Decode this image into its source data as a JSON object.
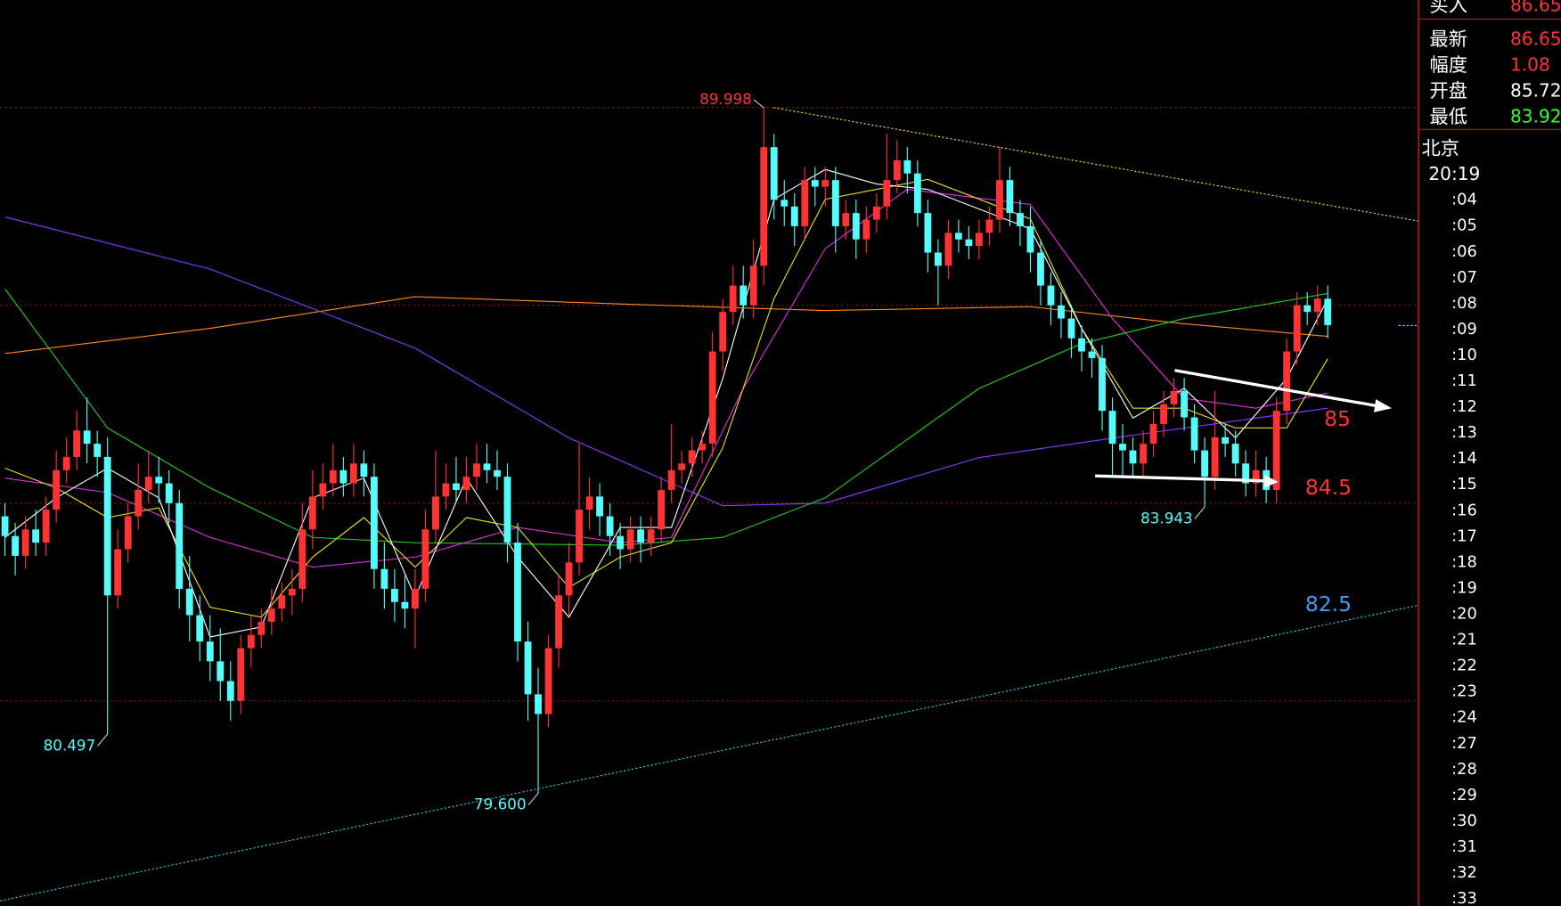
{
  "chart_data": {
    "type": "candlestick",
    "open": [
      83.8,
      83.5,
      83.2,
      83.6,
      83.4,
      83.9,
      84.5,
      84.7,
      85.1,
      84.9,
      84.7,
      82.6,
      83.3,
      83.8,
      84.2,
      84.4,
      84.3,
      84.0,
      82.7,
      82.3,
      81.9,
      81.6,
      81.3,
      81.0,
      81.8,
      82.0,
      82.2,
      82.4,
      82.6,
      82.7,
      83.6,
      84.1,
      84.3,
      84.5,
      84.3,
      84.6,
      84.4,
      83.0,
      82.7,
      82.5,
      82.4,
      82.7,
      83.6,
      84.1,
      84.3,
      84.2,
      84.4,
      84.6,
      84.5,
      84.4,
      83.4,
      81.9,
      81.1,
      80.8,
      81.8,
      82.6,
      83.1,
      83.9,
      84.1,
      83.8,
      83.5,
      83.3,
      83.6,
      83.4,
      83.6,
      84.2,
      84.5,
      84.6,
      84.8,
      84.9,
      86.3,
      86.9,
      87.3,
      87.0,
      87.6,
      89.4,
      88.6,
      88.5,
      88.2,
      88.9,
      88.8,
      88.9,
      88.2,
      88.4,
      88.0,
      88.3,
      88.5,
      88.9,
      89.2,
      89.0,
      88.4,
      87.8,
      87.6,
      88.1,
      88.0,
      87.9,
      88.1,
      88.3,
      88.9,
      88.4,
      88.2,
      87.8,
      87.3,
      87.0,
      86.8,
      86.5,
      86.3,
      86.2,
      85.4,
      84.9,
      84.8,
      84.6,
      84.9,
      85.2,
      85.5,
      85.7,
      85.3,
      84.8,
      84.4,
      85.0,
      84.9,
      84.6,
      84.3,
      84.5,
      84.2,
      85.4,
      86.3,
      87.0,
      86.9,
      87.1
    ],
    "high": [
      84.0,
      83.7,
      83.8,
      83.9,
      84.1,
      84.8,
      85.0,
      85.4,
      85.6,
      85.1,
      85.0,
      83.6,
      84.0,
      84.6,
      84.8,
      84.7,
      84.5,
      84.2,
      83.2,
      82.6,
      82.3,
      82.1,
      81.6,
      82.0,
      82.3,
      82.4,
      82.7,
      82.8,
      83.0,
      84.0,
      84.5,
      84.6,
      84.9,
      84.7,
      84.9,
      84.8,
      84.6,
      83.4,
      83.0,
      82.9,
      83.0,
      83.9,
      84.8,
      84.6,
      84.7,
      84.7,
      84.9,
      84.9,
      84.8,
      84.6,
      83.7,
      82.2,
      81.5,
      82.0,
      82.9,
      83.4,
      84.9,
      84.4,
      84.3,
      84.0,
      83.7,
      83.8,
      83.8,
      83.8,
      84.4,
      85.2,
      84.8,
      85.0,
      85.1,
      86.6,
      87.1,
      87.6,
      87.6,
      88.0,
      89.998,
      89.6,
      88.9,
      88.7,
      89.1,
      89.1,
      89.1,
      89.1,
      88.6,
      88.6,
      88.5,
      88.7,
      89.6,
      89.5,
      89.4,
      89.2,
      88.6,
      88.0,
      88.3,
      88.3,
      88.2,
      88.3,
      88.5,
      89.4,
      89.1,
      88.6,
      88.5,
      88.0,
      87.5,
      87.2,
      87.0,
      86.7,
      86.5,
      86.4,
      85.6,
      85.2,
      85.0,
      85.1,
      85.4,
      85.7,
      85.9,
      85.9,
      85.5,
      85.0,
      85.7,
      85.2,
      85.1,
      84.8,
      84.8,
      84.7,
      85.6,
      86.5,
      87.2,
      87.2,
      87.3,
      87.3
    ],
    "low": [
      83.2,
      82.9,
      83.0,
      83.2,
      83.2,
      83.7,
      84.3,
      84.5,
      84.6,
      84.4,
      80.497,
      82.4,
      83.1,
      83.6,
      84.0,
      84.0,
      83.7,
      82.4,
      81.9,
      81.6,
      81.3,
      81.0,
      80.7,
      80.8,
      81.5,
      81.8,
      82.0,
      82.2,
      82.3,
      82.5,
      83.3,
      83.9,
      84.1,
      84.1,
      84.1,
      84.1,
      82.7,
      82.4,
      82.2,
      82.1,
      81.8,
      82.5,
      83.4,
      83.9,
      84.0,
      84.0,
      84.2,
      84.3,
      84.2,
      83.1,
      81.6,
      80.7,
      79.6,
      80.6,
      81.5,
      82.3,
      82.9,
      83.6,
      83.5,
      83.2,
      83.0,
      83.1,
      83.1,
      83.2,
      83.4,
      84.0,
      84.3,
      84.4,
      84.6,
      84.7,
      86.0,
      86.7,
      86.8,
      86.8,
      87.3,
      88.3,
      88.2,
      87.9,
      88.0,
      88.5,
      88.5,
      87.8,
      88.0,
      87.7,
      87.8,
      88.1,
      88.3,
      88.7,
      88.7,
      88.2,
      87.5,
      87.0,
      87.4,
      87.8,
      87.7,
      87.7,
      87.9,
      88.1,
      88.2,
      87.9,
      87.5,
      87.0,
      86.7,
      86.5,
      86.2,
      86.0,
      85.9,
      85.1,
      84.4,
      84.4,
      84.4,
      84.4,
      84.7,
      85.0,
      85.3,
      85.1,
      84.6,
      83.943,
      84.2,
      84.7,
      84.4,
      84.1,
      84.1,
      84.0,
      84.0,
      85.2,
      86.1,
      86.7,
      86.7,
      86.5
    ],
    "close": [
      83.5,
      83.2,
      83.6,
      83.4,
      83.9,
      84.5,
      84.7,
      85.1,
      84.9,
      84.7,
      82.6,
      83.3,
      83.8,
      84.2,
      84.4,
      84.3,
      84.0,
      82.7,
      82.3,
      81.9,
      81.6,
      81.3,
      81.0,
      81.8,
      82.0,
      82.2,
      82.4,
      82.6,
      82.7,
      83.6,
      84.1,
      84.3,
      84.5,
      84.3,
      84.6,
      84.4,
      83.0,
      82.7,
      82.5,
      82.4,
      82.7,
      83.6,
      84.1,
      84.3,
      84.2,
      84.4,
      84.6,
      84.5,
      84.4,
      83.4,
      81.9,
      81.1,
      80.8,
      81.8,
      82.6,
      83.1,
      83.9,
      84.1,
      83.8,
      83.5,
      83.3,
      83.6,
      83.4,
      83.6,
      84.2,
      84.5,
      84.6,
      84.8,
      84.9,
      86.3,
      86.9,
      87.3,
      87.0,
      87.6,
      89.4,
      88.6,
      88.5,
      88.2,
      88.9,
      88.8,
      88.9,
      88.2,
      88.4,
      88.0,
      88.3,
      88.5,
      88.9,
      89.2,
      89.0,
      88.4,
      87.8,
      87.6,
      88.1,
      88.0,
      87.9,
      88.1,
      88.3,
      88.9,
      88.4,
      88.2,
      87.8,
      87.3,
      87.0,
      86.8,
      86.5,
      86.3,
      86.2,
      85.4,
      84.9,
      84.8,
      84.6,
      84.9,
      85.2,
      85.5,
      85.7,
      85.3,
      84.8,
      84.4,
      85.0,
      84.9,
      84.6,
      84.3,
      84.5,
      84.2,
      85.4,
      86.3,
      87.0,
      86.9,
      87.1,
      86.7
    ],
    "up_color": "#ff3333",
    "down_color": "#54fcfc",
    "ylim": [
      77.89,
      91.63
    ],
    "yticks": [
      81,
      84,
      87,
      90
    ],
    "grid": true,
    "grid_color": "#8a1c1c",
    "moving_averages": [
      {
        "color": "#ff8c1a",
        "x": [
          0,
          20,
          40,
          60,
          80,
          100,
          115,
          129
        ],
        "values": [
          86.27,
          86.65,
          87.13,
          87.02,
          86.92,
          86.98,
          86.72,
          86.53
        ]
      },
      {
        "color": "#8a3cff",
        "x": [
          0,
          20,
          40,
          55,
          70,
          80,
          95,
          110,
          129
        ],
        "values": [
          88.34,
          87.55,
          86.35,
          84.99,
          83.96,
          84.0,
          84.69,
          85.03,
          85.44
        ]
      },
      {
        "color": "#22cc22",
        "x": [
          0,
          10,
          20,
          30,
          40,
          60,
          70,
          80,
          95,
          105,
          115,
          129
        ],
        "values": [
          87.25,
          85.14,
          84.23,
          83.48,
          83.4,
          83.36,
          83.48,
          84.08,
          85.74,
          86.42,
          86.8,
          87.18
        ]
      },
      {
        "color": "#e030e0",
        "x": [
          0,
          10,
          20,
          30,
          40,
          50,
          60,
          65,
          72,
          80,
          88,
          100,
          108,
          115,
          122,
          129
        ],
        "values": [
          84.38,
          84.16,
          83.48,
          83.03,
          83.18,
          83.63,
          83.4,
          83.48,
          85.74,
          87.86,
          88.76,
          88.53,
          86.8,
          85.59,
          85.44,
          85.67
        ]
      },
      {
        "color": "#e8e020",
        "x": [
          0,
          5,
          10,
          15,
          20,
          25,
          30,
          35,
          40,
          45,
          50,
          55,
          60,
          65,
          70,
          75,
          80,
          85,
          90,
          95,
          100,
          105,
          110,
          115,
          120,
          125,
          129
        ],
        "values": [
          84.53,
          84.23,
          83.78,
          83.93,
          82.42,
          82.27,
          83.18,
          83.78,
          83.03,
          83.78,
          83.63,
          82.72,
          83.18,
          83.4,
          84.84,
          87.1,
          88.61,
          88.76,
          88.91,
          88.61,
          88.31,
          86.65,
          85.44,
          85.44,
          85.14,
          85.14,
          86.19
        ]
      },
      {
        "color": "#ffffff",
        "x": [
          0,
          5,
          10,
          15,
          20,
          25,
          30,
          35,
          40,
          45,
          50,
          55,
          60,
          65,
          70,
          75,
          80,
          85,
          90,
          95,
          100,
          105,
          110,
          115,
          120,
          125,
          129
        ],
        "values": [
          83.48,
          84.08,
          84.53,
          84.08,
          81.97,
          82.12,
          84.08,
          84.38,
          82.57,
          84.38,
          83.18,
          82.27,
          83.63,
          83.63,
          85.89,
          88.61,
          89.06,
          88.84,
          88.76,
          88.46,
          88.16,
          86.65,
          85.29,
          85.74,
          84.99,
          85.89,
          87.1
        ]
      }
    ],
    "extremes": [
      {
        "value": 89.998,
        "label": "89.998"
      },
      {
        "value": 80.497,
        "label": "80.497"
      },
      {
        "value": 79.6,
        "label": "79.600"
      },
      {
        "value": 83.943,
        "label": "83.943"
      }
    ],
    "drawn_labels": [
      "85",
      "84.5",
      "82.5"
    ]
  },
  "quote_panel": {
    "rows": [
      {
        "label": "买入",
        "value": 86.65,
        "color": "#ff3333"
      },
      {
        "label": "最新",
        "value": 86.65,
        "color": "#ff3333"
      },
      {
        "label": "幅度",
        "value": 1.08,
        "color": "#ff3333"
      },
      {
        "label": "开盘",
        "value": 85.72,
        "color": "#ffffff"
      },
      {
        "label": "最低",
        "value": 83.92,
        "color": "#33ff33"
      }
    ],
    "city": "北京",
    "time": "20:19",
    "times": [
      ":04",
      ":05",
      ":06",
      ":07",
      ":08",
      ":09",
      ":10",
      ":11",
      ":12",
      ":13",
      ":14",
      ":15",
      ":16",
      ":17",
      ":18",
      ":19",
      ":20",
      ":21",
      ":22",
      ":23",
      ":24",
      ":27",
      ":28",
      ":29",
      ":30",
      ":31",
      ":32",
      ":33"
    ]
  }
}
